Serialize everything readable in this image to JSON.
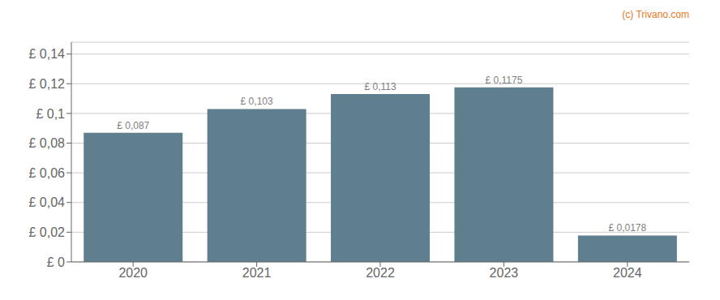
{
  "chart_data": {
    "type": "bar",
    "categories": [
      "2020",
      "2021",
      "2022",
      "2023",
      "2024"
    ],
    "values": [
      0.087,
      0.103,
      0.113,
      0.1175,
      0.0178
    ],
    "value_labels": [
      "£ 0,087",
      "£ 0,103",
      "£ 0,113",
      "£ 0,1175",
      "£ 0,0178"
    ],
    "data_labels": true,
    "color": "#5f7f8f",
    "ylim": [
      0,
      0.148
    ],
    "yticks": [
      {
        "value": 0,
        "label": "£ 0"
      },
      {
        "value": 0.02,
        "label": "£ 0,02"
      },
      {
        "value": 0.04,
        "label": "£ 0,04"
      },
      {
        "value": 0.06,
        "label": "£ 0,06"
      },
      {
        "value": 0.08,
        "label": "£ 0,08"
      },
      {
        "value": 0.1,
        "label": "£ 0,1"
      },
      {
        "value": 0.12,
        "label": "£ 0,12"
      },
      {
        "value": 0.14,
        "label": "£ 0,14"
      }
    ],
    "grid": true,
    "annotations": [
      {
        "text": "(c) Trivano.com",
        "color": "#e87722"
      }
    ]
  }
}
